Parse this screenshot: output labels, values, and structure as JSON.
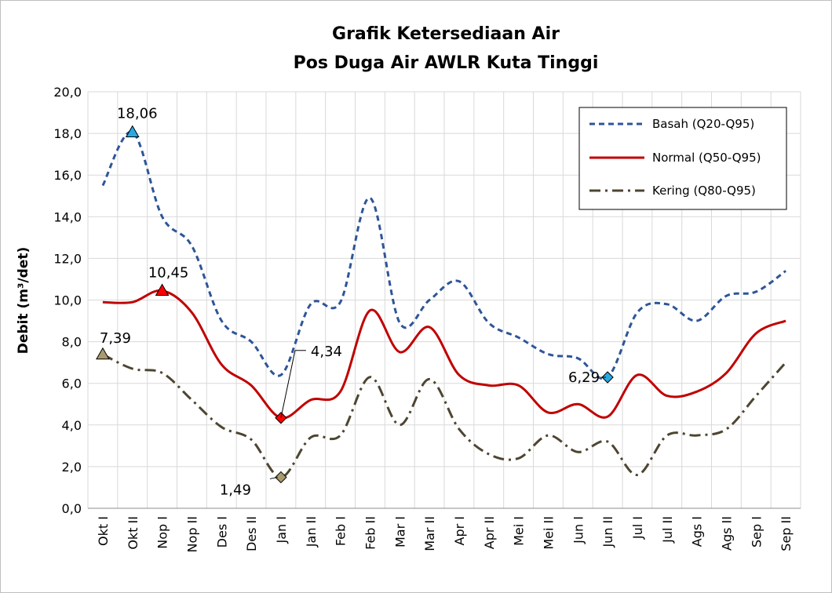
{
  "chart_data": {
    "type": "line",
    "title": [
      "Grafik Ketersediaan Air",
      "Pos Duga Air AWLR Kuta Tinggi"
    ],
    "ylabel": "Debit (m³/det)",
    "ylim": [
      0,
      20
    ],
    "yticks": [
      "0,0",
      "2,0",
      "4,0",
      "6,0",
      "8,0",
      "10,0",
      "12,0",
      "14,0",
      "16,0",
      "18,0",
      "20,0"
    ],
    "categories": [
      "Okt I",
      "Okt II",
      "Nop I",
      "Nop II",
      "Des I",
      "Des II",
      "Jan I",
      "Jan II",
      "Feb I",
      "Feb II",
      "Mar I",
      "Mar II",
      "Apr I",
      "Apr II",
      "Mei I",
      "Mei II",
      "Jun I",
      "Jun II",
      "Jul I",
      "Jul II",
      "Ags I",
      "Ags II",
      "Sep I",
      "Sep II"
    ],
    "grid": true,
    "legend_position": "top-right",
    "series": [
      {
        "name": "Basah (Q20-Q95)",
        "color": "#2e5597",
        "style": "dashed",
        "values": [
          15.5,
          18.06,
          14.0,
          12.6,
          9.0,
          8.0,
          6.4,
          9.8,
          9.9,
          14.9,
          8.9,
          10.0,
          10.9,
          8.9,
          8.2,
          7.4,
          7.2,
          6.29,
          9.4,
          9.8,
          9.0,
          10.2,
          10.4,
          11.4
        ]
      },
      {
        "name": "Normal (Q50-Q95)",
        "color": "#c00000",
        "style": "solid",
        "values": [
          9.9,
          9.9,
          10.45,
          9.4,
          6.9,
          5.9,
          4.34,
          5.2,
          5.6,
          9.5,
          7.5,
          8.7,
          6.4,
          5.9,
          5.9,
          4.6,
          5.0,
          4.4,
          6.4,
          5.4,
          5.6,
          6.5,
          8.4,
          9.0
        ]
      },
      {
        "name": "Kering (Q80-Q95)",
        "color": "#4d4530",
        "style": "dashdot",
        "values": [
          7.39,
          6.7,
          6.5,
          5.2,
          3.9,
          3.3,
          1.49,
          3.4,
          3.5,
          6.3,
          4.0,
          6.2,
          3.8,
          2.6,
          2.4,
          3.5,
          2.7,
          3.2,
          1.6,
          3.5,
          3.5,
          3.8,
          5.4,
          7.0
        ]
      }
    ],
    "annotations": [
      {
        "label": "18,06",
        "series": 0,
        "index": 1,
        "marker": "triangle",
        "color": "#29a9e0"
      },
      {
        "label": "6,29",
        "series": 0,
        "index": 17,
        "marker": "diamond",
        "color": "#29a9e0"
      },
      {
        "label": "10,45",
        "series": 1,
        "index": 2,
        "marker": "triangle",
        "color": "#ff0000"
      },
      {
        "label": "4,34",
        "series": 1,
        "index": 6,
        "marker": "diamond",
        "color": "#ff0000"
      },
      {
        "label": "7,39",
        "series": 2,
        "index": 0,
        "marker": "triangle",
        "color": "#a89a6c"
      },
      {
        "label": "1,49",
        "series": 2,
        "index": 6,
        "marker": "diamond",
        "color": "#a89a6c"
      }
    ]
  }
}
